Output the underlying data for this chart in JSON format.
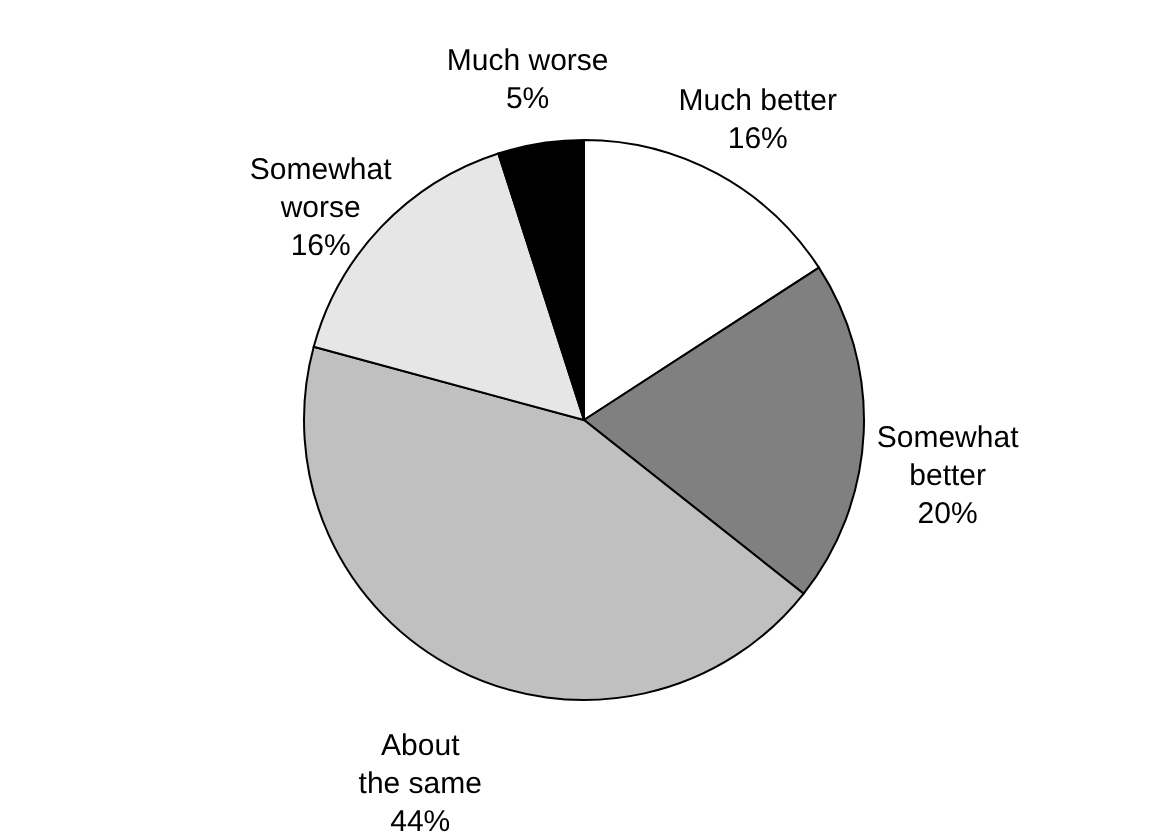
{
  "chart_data": {
    "type": "pie",
    "categories": [
      "Much better",
      "Somewhat\nbetter",
      "About\nthe same",
      "Somewhat\nworse",
      "Much worse"
    ],
    "values": [
      16,
      20,
      44,
      16,
      5
    ],
    "value_labels": [
      "16%",
      "20%",
      "44%",
      "16%",
      "5%"
    ],
    "colors": [
      "#ffffff",
      "#808080",
      "#c0c0c0",
      "#e6e6e6",
      "#000000"
    ]
  }
}
